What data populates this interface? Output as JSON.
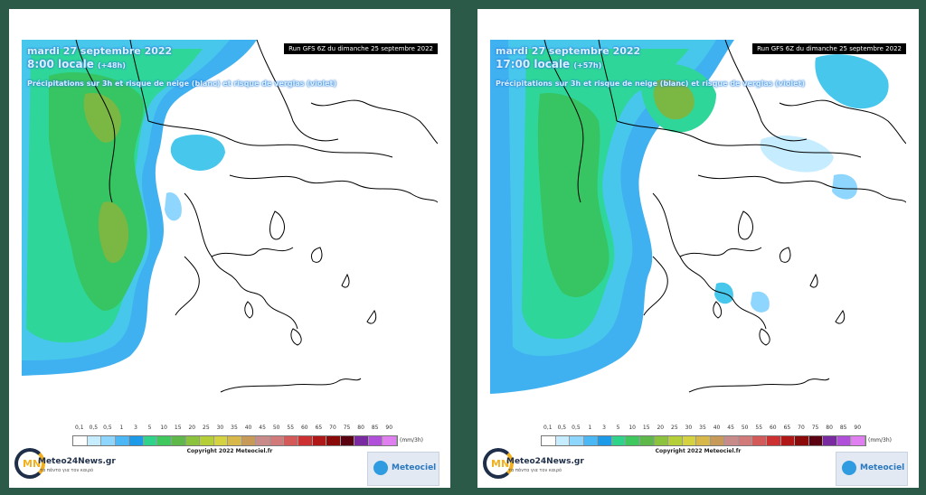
{
  "panels": [
    {
      "date": "mardi 27 septembre 2022",
      "time": "8:00 locale",
      "offset": "(+48h)",
      "description": "Précipitations sur 3h et risque de neige (blanc) et risque de verglas (violet)",
      "run": "Run GFS 6Z du dimanche 25 septembre 2022"
    },
    {
      "date": "mardi 27 septembre 2022",
      "time": "17:00 locale",
      "offset": "(+57h)",
      "description": "Précipitations sur 3h et risque de neige (blanc) et risque de verglas (violet)",
      "run": "Run GFS 6Z du dimanche 25 septembre 2022"
    }
  ],
  "legend": {
    "labels": [
      "0,1",
      "0,5",
      "0,5",
      "1",
      "3",
      "5",
      "10",
      "15",
      "20",
      "25",
      "30",
      "35",
      "40",
      "45",
      "50",
      "55",
      "60",
      "65",
      "70",
      "75",
      "80",
      "85",
      "90"
    ],
    "colors": [
      "#ffffff",
      "#c5ecff",
      "#8fd6ff",
      "#4bb8f5",
      "#1e9be8",
      "#2fd38a",
      "#3ec85e",
      "#5fb84a",
      "#8cc33e",
      "#b5cf39",
      "#d4d240",
      "#d8b84a",
      "#c79a5a",
      "#c98a8a",
      "#d27a7a",
      "#d45a5a",
      "#cc3030",
      "#b01818",
      "#8a0a0a",
      "#5a0010",
      "#7a2aa0",
      "#b050d8",
      "#e080f0"
    ],
    "unit": "(mm/3h)"
  },
  "copyright": "Copyright 2022 Meteociel.fr",
  "logos": {
    "meteo24": "Meteo24News.gr",
    "meteo24_letters": "MN",
    "meteo24_tagline": "τα πάντα για τον καιρό",
    "meteociel": "Meteociel"
  }
}
